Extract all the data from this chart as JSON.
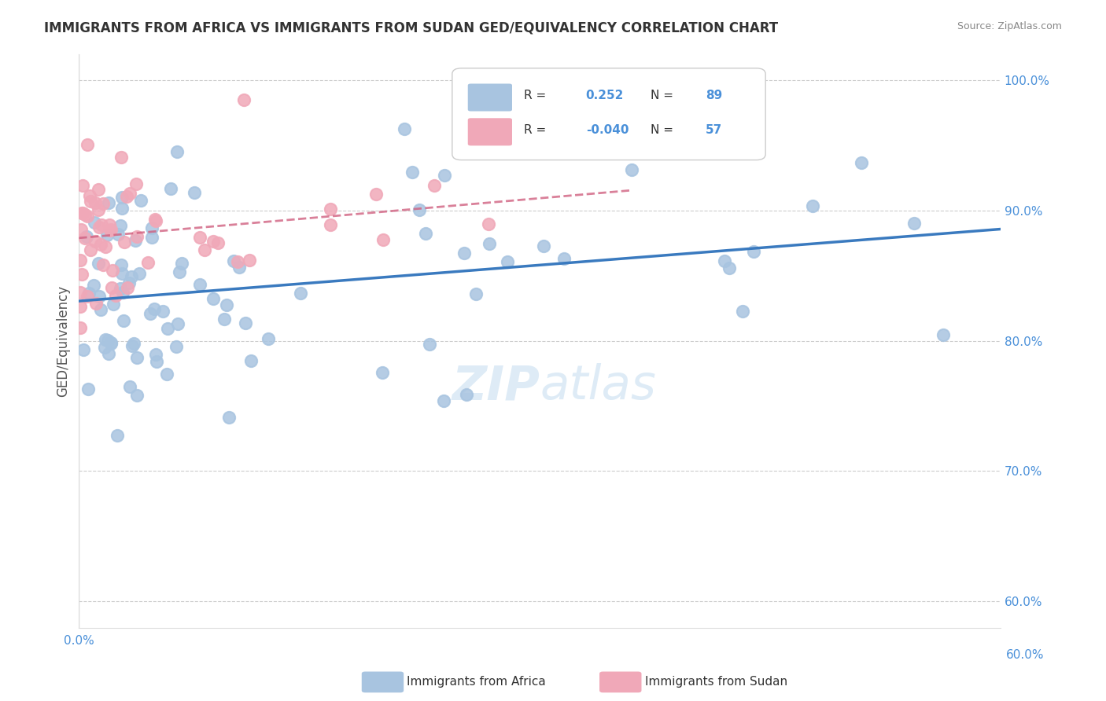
{
  "title": "IMMIGRANTS FROM AFRICA VS IMMIGRANTS FROM SUDAN GED/EQUIVALENCY CORRELATION CHART",
  "source": "Source: ZipAtlas.com",
  "ylabel": "GED/Equivalency",
  "y_ticks": [
    60.0,
    70.0,
    80.0,
    90.0,
    100.0
  ],
  "x_min": 0.0,
  "x_max": 60.0,
  "y_min": 60.0,
  "y_max": 102.0,
  "R_africa": 0.252,
  "N_africa": 89,
  "R_sudan": -0.04,
  "N_sudan": 57,
  "color_africa": "#a8c4e0",
  "color_sudan": "#f0a8b8",
  "color_africa_line": "#3a7abf",
  "color_sudan_line": "#d06080",
  "watermark_zip": "ZIP",
  "watermark_atlas": "atlas"
}
